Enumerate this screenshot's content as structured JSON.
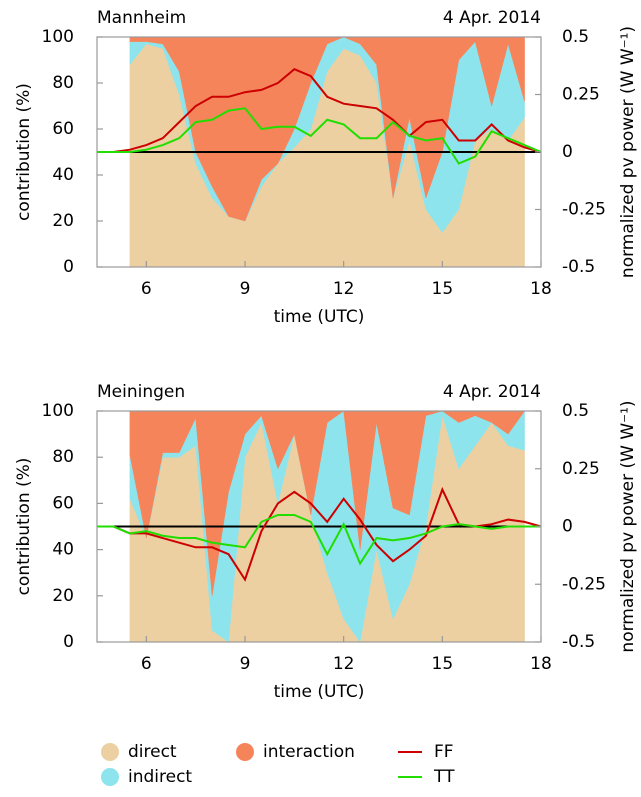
{
  "chart_data": [
    {
      "type": "stacked-area",
      "title": "Mannheim",
      "subtitle": "4 Apr. 2014",
      "x_label": "time (UTC)",
      "y_label": "contribution (%)",
      "y2_label": "normalized pv power (W W⁻¹)",
      "xlim": [
        4.5,
        18
      ],
      "xticks": [
        6,
        9,
        12,
        15,
        18
      ],
      "ylim": [
        0,
        100
      ],
      "yticks": [
        0,
        20,
        40,
        60,
        80,
        100
      ],
      "y2lim": [
        -0.5,
        0.5
      ],
      "y2ticks": [
        -0.5,
        -0.25,
        0,
        0.25,
        0.5
      ],
      "x": [
        5.5,
        6,
        6.5,
        7,
        7.5,
        8,
        8.5,
        9,
        9.5,
        10,
        10.5,
        11,
        11.5,
        12,
        12.5,
        13,
        13.5,
        14,
        14.5,
        15,
        15.5,
        16,
        16.5,
        17,
        17.5
      ],
      "series": [
        {
          "name": "direct",
          "color": "#edd0a2",
          "values": [
            88,
            97,
            95,
            75,
            45,
            30,
            22,
            20,
            35,
            45,
            52,
            60,
            85,
            95,
            92,
            80,
            30,
            55,
            25,
            15,
            25,
            55,
            60,
            55,
            65
          ]
        },
        {
          "name": "indirect",
          "color": "#8ee4ec",
          "values": [
            10,
            1,
            2,
            10,
            5,
            5,
            0,
            0,
            3,
            0,
            8,
            20,
            12,
            5,
            5,
            8,
            0,
            10,
            5,
            35,
            65,
            43,
            10,
            42,
            7
          ]
        },
        {
          "name": "interaction",
          "color": "#f6845a",
          "values": [
            2,
            2,
            3,
            15,
            50,
            65,
            78,
            80,
            62,
            55,
            40,
            20,
            3,
            0,
            3,
            12,
            70,
            35,
            70,
            50,
            10,
            2,
            30,
            3,
            28
          ]
        },
        {
          "name": "FF",
          "color": "#cc0000",
          "type": "line",
          "axis": "y2",
          "x": [
            4.5,
            5,
            5.5,
            6,
            6.5,
            7,
            7.5,
            8,
            8.5,
            9,
            9.5,
            10,
            10.5,
            11,
            11.5,
            12,
            12.5,
            13,
            13.5,
            14,
            14.5,
            15,
            15.5,
            16,
            16.5,
            17,
            17.5,
            18
          ],
          "values": [
            0,
            0,
            0.01,
            0.03,
            0.06,
            0.13,
            0.2,
            0.24,
            0.24,
            0.26,
            0.27,
            0.3,
            0.36,
            0.33,
            0.24,
            0.21,
            0.2,
            0.19,
            0.14,
            0.07,
            0.13,
            0.14,
            0.05,
            0.05,
            0.12,
            0.05,
            0.02,
            0
          ]
        },
        {
          "name": "TT",
          "color": "#22dd00",
          "type": "line",
          "axis": "y2",
          "x": [
            4.5,
            5,
            5.5,
            6,
            6.5,
            7,
            7.5,
            8,
            8.5,
            9,
            9.5,
            10,
            10.5,
            11,
            11.5,
            12,
            12.5,
            13,
            13.5,
            14,
            14.5,
            15,
            15.5,
            16,
            16.5,
            17,
            17.5,
            18
          ],
          "values": [
            0,
            0,
            0,
            0.01,
            0.03,
            0.06,
            0.13,
            0.14,
            0.18,
            0.19,
            0.1,
            0.11,
            0.11,
            0.07,
            0.14,
            0.12,
            0.06,
            0.06,
            0.13,
            0.07,
            0.05,
            0.06,
            -0.05,
            -0.02,
            0.09,
            0.06,
            0.03,
            0
          ]
        }
      ]
    },
    {
      "type": "stacked-area",
      "title": "Meiningen",
      "subtitle": "4 Apr. 2014",
      "x_label": "time (UTC)",
      "y_label": "contribution (%)",
      "y2_label": "normalized pv power (W W⁻¹)",
      "xlim": [
        4.5,
        18
      ],
      "xticks": [
        6,
        9,
        12,
        15,
        18
      ],
      "ylim": [
        0,
        100
      ],
      "yticks": [
        0,
        20,
        40,
        60,
        80,
        100
      ],
      "y2lim": [
        -0.5,
        0.5
      ],
      "y2ticks": [
        -0.5,
        -0.25,
        0,
        0.25,
        0.5
      ],
      "x": [
        5.5,
        6,
        6.5,
        7,
        7.5,
        8,
        8.5,
        9,
        9.5,
        10,
        10.5,
        11,
        11.5,
        12,
        12.5,
        13,
        13.5,
        14,
        14.5,
        15,
        15.5,
        16,
        16.5,
        17,
        17.5
      ],
      "series": [
        {
          "name": "direct",
          "color": "#edd0a2",
          "values": [
            62,
            45,
            80,
            80,
            85,
            5,
            0,
            80,
            95,
            60,
            90,
            55,
            30,
            10,
            0,
            40,
            10,
            25,
            50,
            98,
            75,
            85,
            95,
            85,
            83
          ]
        },
        {
          "name": "indirect",
          "color": "#8ee4ec",
          "values": [
            19,
            0,
            2,
            2,
            12,
            15,
            65,
            10,
            3,
            15,
            0,
            0,
            65,
            90,
            40,
            55,
            48,
            30,
            48,
            2,
            20,
            13,
            0,
            5,
            17
          ]
        },
        {
          "name": "interaction",
          "color": "#f6845a",
          "values": [
            19,
            55,
            18,
            18,
            3,
            80,
            35,
            10,
            2,
            25,
            10,
            45,
            5,
            0,
            60,
            5,
            42,
            45,
            2,
            0,
            5,
            2,
            5,
            10,
            0
          ]
        },
        {
          "name": "FF",
          "color": "#cc0000",
          "type": "line",
          "axis": "y2",
          "x": [
            4.5,
            5,
            5.5,
            6,
            6.5,
            7,
            7.5,
            8,
            8.5,
            9,
            9.5,
            10,
            10.5,
            11,
            11.5,
            12,
            12.5,
            13,
            13.5,
            14,
            14.5,
            15,
            15.5,
            16,
            16.5,
            17,
            17.5,
            18
          ],
          "values": [
            0,
            0,
            -0.03,
            -0.03,
            -0.05,
            -0.07,
            -0.09,
            -0.09,
            -0.12,
            -0.23,
            -0.02,
            0.1,
            0.15,
            0.1,
            0.02,
            0.12,
            0.03,
            -0.08,
            -0.15,
            -0.1,
            -0.04,
            0.16,
            0.01,
            0,
            0.01,
            0.03,
            0.02,
            0
          ]
        },
        {
          "name": "TT",
          "color": "#22dd00",
          "type": "line",
          "axis": "y2",
          "x": [
            4.5,
            5,
            5.5,
            6,
            6.5,
            7,
            7.5,
            8,
            8.5,
            9,
            9.5,
            10,
            10.5,
            11,
            11.5,
            12,
            12.5,
            13,
            13.5,
            14,
            14.5,
            15,
            15.5,
            16,
            16.5,
            17,
            17.5,
            18
          ],
          "values": [
            0,
            0,
            -0.03,
            -0.02,
            -0.04,
            -0.05,
            -0.05,
            -0.07,
            -0.08,
            -0.09,
            0.02,
            0.05,
            0.05,
            0.02,
            -0.12,
            0.01,
            -0.16,
            -0.05,
            -0.06,
            -0.05,
            -0.03,
            0,
            0.01,
            0,
            -0.01,
            0,
            0,
            0
          ]
        }
      ]
    }
  ]
}
